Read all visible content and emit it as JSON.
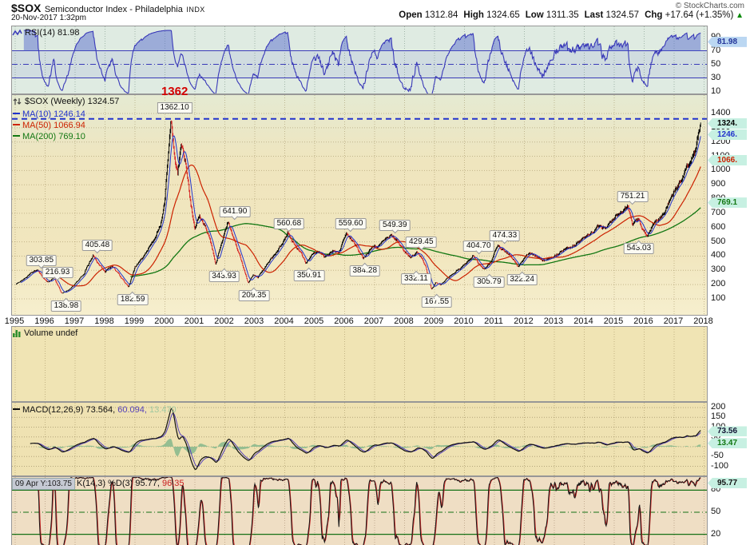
{
  "header": {
    "symbol": "$SOX",
    "name": "Semiconductor Index - Philadelphia",
    "exchange": "INDX",
    "datetime": "20-Nov-2017 1:32pm",
    "copyright": "© StockCharts.com",
    "quote": [
      {
        "label": "Open",
        "value": "1312.84"
      },
      {
        "label": "High",
        "value": "1324.65"
      },
      {
        "label": "Low",
        "value": "1311.35"
      },
      {
        "label": "Last",
        "value": "1324.57"
      },
      {
        "label": "Chg",
        "value": "+17.64 (+1.35%)"
      }
    ],
    "chg_icon": "▲"
  },
  "icons": {
    "rsi": "zigzag-line-icon",
    "price": "up-down-arrows-icon",
    "volume": "bar-chart-icon",
    "macd": "dash-line-icon"
  },
  "colors": {
    "price_up": "#000000",
    "price_down": "#D42222",
    "ma10": "#2233CC",
    "ma50": "#CC2200",
    "ma200": "#127712",
    "rsi_line": "#3939B8",
    "macd_line": "#101010",
    "macd_signal": "#5540B8",
    "macd_hist": "#8FBC8F",
    "stoch_k": "#151515",
    "stoch_d": "#CC2222",
    "stoch_lines": "#157015",
    "badge_bg": "#C7F0E2",
    "rsi_badge_bg": "#BBD7F2",
    "peak_red": "#D40000"
  },
  "chart_data": {
    "type": "multi-panel-financial",
    "x_range": [
      1995,
      2018
    ],
    "x_ticks": [
      1995,
      1996,
      1997,
      1998,
      1999,
      2000,
      2001,
      2002,
      2003,
      2004,
      2005,
      2006,
      2007,
      2008,
      2009,
      2010,
      2011,
      2012,
      2013,
      2014,
      2015,
      2016,
      2017,
      2018
    ],
    "panels": {
      "rsi": {
        "type": "line",
        "label": "RSI(14) 81.98",
        "last": 81.98,
        "ylim": [
          0,
          100
        ],
        "yticks": [
          90,
          70,
          50,
          30,
          10
        ],
        "hlines_solid": [
          70,
          30
        ],
        "hlines_dashdot": [
          50
        ],
        "badges": [
          {
            "text": "81.98",
            "value": 81.98,
            "color": "#223399"
          }
        ]
      },
      "price": {
        "type": "ohlc-line",
        "label": "$SOX (Weekly) 1324.57",
        "last": 1324.57,
        "ylim": [
          100,
          1400
        ],
        "yticks": [
          1400,
          1300,
          1200,
          1100,
          1000,
          900,
          800,
          700,
          600,
          500,
          400,
          300,
          200,
          100
        ],
        "peak": {
          "text": "1362",
          "box": "1362.10",
          "level": 1362.1,
          "year": 2000.35
        },
        "ma": [
          {
            "label": "MA(10) 1246.14",
            "period": 10,
            "last": 1246.14,
            "color": "#2233CC"
          },
          {
            "label": "MA(50) 1066.94",
            "period": 50,
            "last": 1066.94,
            "color": "#CC2200"
          },
          {
            "label": "MA(200) 769.10",
            "period": 200,
            "last": 769.1,
            "color": "#127712"
          }
        ],
        "badges": [
          {
            "text": "1324.",
            "value": 1324.57,
            "color": "#000000"
          },
          {
            "text": "1246.",
            "value": 1246.14,
            "color": "#2233CC"
          },
          {
            "text": "1066.",
            "value": 1066.94,
            "color": "#CC2200"
          },
          {
            "text": "769.1",
            "value": 769.1,
            "color": "#127712"
          }
        ],
        "annotations": [
          {
            "text": "303.85",
            "year": 1995.9,
            "value": 303.85,
            "kind": "high"
          },
          {
            "text": "216.93",
            "year": 1996.44,
            "value": 216.93,
            "kind": "high"
          },
          {
            "text": "138.98",
            "year": 1996.73,
            "value": 138.98,
            "kind": "low"
          },
          {
            "text": "405.48",
            "year": 1997.77,
            "value": 405.48,
            "kind": "high"
          },
          {
            "text": "182.59",
            "year": 1998.95,
            "value": 182.59,
            "kind": "low"
          },
          {
            "text": "343.93",
            "year": 2002.0,
            "value": 343.93,
            "kind": "low"
          },
          {
            "text": "641.90",
            "year": 2002.36,
            "value": 641.9,
            "kind": "high"
          },
          {
            "text": "209.35",
            "year": 2003.0,
            "value": 209.35,
            "kind": "low"
          },
          {
            "text": "560.68",
            "year": 2004.17,
            "value": 560.68,
            "kind": "high"
          },
          {
            "text": "350.91",
            "year": 2004.84,
            "value": 350.91,
            "kind": "low"
          },
          {
            "text": "559.60",
            "year": 2006.23,
            "value": 559.6,
            "kind": "high"
          },
          {
            "text": "384.28",
            "year": 2006.7,
            "value": 384.28,
            "kind": "low"
          },
          {
            "text": "549.39",
            "year": 2007.7,
            "value": 549.39,
            "kind": "high"
          },
          {
            "text": "429.45",
            "year": 2008.58,
            "value": 429.45,
            "kind": "high"
          },
          {
            "text": "332.11",
            "year": 2008.41,
            "value": 332.11,
            "kind": "low"
          },
          {
            "text": "167.55",
            "year": 2009.1,
            "value": 167.55,
            "kind": "low"
          },
          {
            "text": "404.70",
            "year": 2010.5,
            "value": 404.7,
            "kind": "high"
          },
          {
            "text": "305.79",
            "year": 2010.85,
            "value": 305.79,
            "kind": "low"
          },
          {
            "text": "474.33",
            "year": 2011.37,
            "value": 474.33,
            "kind": "high"
          },
          {
            "text": "322.24",
            "year": 2011.95,
            "value": 322.24,
            "kind": "low"
          },
          {
            "text": "751.21",
            "year": 2015.64,
            "value": 751.21,
            "kind": "high"
          },
          {
            "text": "543.03",
            "year": 2015.85,
            "value": 543.03,
            "kind": "low"
          }
        ],
        "anchors": [
          [
            1995.02,
            205
          ],
          [
            1995.3,
            240
          ],
          [
            1995.55,
            285
          ],
          [
            1995.75,
            303.85
          ],
          [
            1995.95,
            240
          ],
          [
            1996.1,
            216.93
          ],
          [
            1996.3,
            252
          ],
          [
            1996.55,
            138.98
          ],
          [
            1996.8,
            165
          ],
          [
            1997.0,
            205
          ],
          [
            1997.3,
            280
          ],
          [
            1997.6,
            405.48
          ],
          [
            1997.8,
            340
          ],
          [
            1998.0,
            290
          ],
          [
            1998.25,
            330
          ],
          [
            1998.5,
            260
          ],
          [
            1998.78,
            182.59
          ],
          [
            1999.0,
            320
          ],
          [
            1999.3,
            400
          ],
          [
            1999.6,
            500
          ],
          [
            1999.85,
            620
          ],
          [
            2000.0,
            800
          ],
          [
            2000.12,
            1150
          ],
          [
            2000.2,
            1362.1
          ],
          [
            2000.32,
            1100
          ],
          [
            2000.42,
            980
          ],
          [
            2000.55,
            1180
          ],
          [
            2000.7,
            1050
          ],
          [
            2000.85,
            780
          ],
          [
            2001.0,
            590
          ],
          [
            2001.15,
            680
          ],
          [
            2001.35,
            610
          ],
          [
            2001.5,
            520
          ],
          [
            2001.7,
            343.93
          ],
          [
            2001.85,
            470
          ],
          [
            2002.0,
            560
          ],
          [
            2002.1,
            641.9
          ],
          [
            2002.3,
            520
          ],
          [
            2002.5,
            400
          ],
          [
            2002.65,
            300
          ],
          [
            2002.78,
            209.35
          ],
          [
            2002.95,
            270
          ],
          [
            2003.1,
            250
          ],
          [
            2003.4,
            340
          ],
          [
            2003.7,
            420
          ],
          [
            2003.95,
            500
          ],
          [
            2004.1,
            560.68
          ],
          [
            2004.35,
            470
          ],
          [
            2004.55,
            420
          ],
          [
            2004.7,
            350.91
          ],
          [
            2004.95,
            420
          ],
          [
            2005.15,
            430
          ],
          [
            2005.35,
            390
          ],
          [
            2005.6,
            440
          ],
          [
            2005.8,
            425
          ],
          [
            2006.05,
            559.6
          ],
          [
            2006.3,
            500
          ],
          [
            2006.62,
            384.28
          ],
          [
            2006.9,
            460
          ],
          [
            2007.1,
            470
          ],
          [
            2007.3,
            500
          ],
          [
            2007.55,
            549.39
          ],
          [
            2007.75,
            510
          ],
          [
            2008.0,
            430
          ],
          [
            2008.2,
            390
          ],
          [
            2008.4,
            429.45
          ],
          [
            2008.55,
            400
          ],
          [
            2008.7,
            332.11
          ],
          [
            2008.82,
            230
          ],
          [
            2008.9,
            167.55
          ],
          [
            2009.05,
            215
          ],
          [
            2009.2,
            195
          ],
          [
            2009.45,
            250
          ],
          [
            2009.7,
            290
          ],
          [
            2009.95,
            330
          ],
          [
            2010.15,
            370
          ],
          [
            2010.3,
            404.7
          ],
          [
            2010.5,
            340
          ],
          [
            2010.65,
            305.79
          ],
          [
            2010.9,
            365
          ],
          [
            2011.1,
            474.33
          ],
          [
            2011.3,
            440
          ],
          [
            2011.5,
            410
          ],
          [
            2011.62,
            380
          ],
          [
            2011.78,
            322.24
          ],
          [
            2011.95,
            370
          ],
          [
            2012.15,
            420
          ],
          [
            2012.4,
            400
          ],
          [
            2012.6,
            365
          ],
          [
            2012.85,
            385
          ],
          [
            2013.1,
            415
          ],
          [
            2013.4,
            450
          ],
          [
            2013.7,
            480
          ],
          [
            2013.95,
            520
          ],
          [
            2014.2,
            555
          ],
          [
            2014.5,
            615
          ],
          [
            2014.7,
            590
          ],
          [
            2014.95,
            660
          ],
          [
            2015.2,
            700
          ],
          [
            2015.45,
            751.21
          ],
          [
            2015.6,
            620
          ],
          [
            2015.8,
            655
          ],
          [
            2015.95,
            590
          ],
          [
            2016.1,
            543.03
          ],
          [
            2016.3,
            620
          ],
          [
            2016.5,
            660
          ],
          [
            2016.7,
            720
          ],
          [
            2016.9,
            820
          ],
          [
            2017.1,
            890
          ],
          [
            2017.25,
            950
          ],
          [
            2017.4,
            1010
          ],
          [
            2017.55,
            1080
          ],
          [
            2017.68,
            1120
          ],
          [
            2017.78,
            1220
          ],
          [
            2017.85,
            1290
          ],
          [
            2017.89,
            1324.57
          ]
        ]
      },
      "volume": {
        "type": "bar",
        "label": "Volume undef"
      },
      "macd": {
        "type": "line",
        "label_black": "MACD(12,26,9) 73.564,",
        "label_signal": "60.094,",
        "label_hist": "13.470",
        "last": [
          73.564,
          60.094,
          13.47
        ],
        "ylim": [
          -100,
          200
        ],
        "yticks": [
          200,
          150,
          100,
          50,
          0,
          -50,
          -100
        ],
        "badges": [
          {
            "text": "73.56",
            "value": 73.56,
            "color": "#111133"
          },
          {
            "text": "13.47",
            "value": 13.47,
            "color": "#117711"
          }
        ]
      },
      "stoch": {
        "type": "line",
        "tooltip": "09 Apr Y:103.75",
        "label_black": "K(14,3) %D(3) 95.77,",
        "label_red": "96.35",
        "last": [
          95.77,
          96.35
        ],
        "ylim": [
          0,
          100
        ],
        "yticks": [
          80,
          50,
          20
        ],
        "hlines_solid": [
          80,
          20
        ],
        "hlines_dashdot": [
          50
        ],
        "badges": [
          {
            "text": "95.77",
            "value": 95.77,
            "color": "#111111"
          }
        ]
      }
    }
  }
}
